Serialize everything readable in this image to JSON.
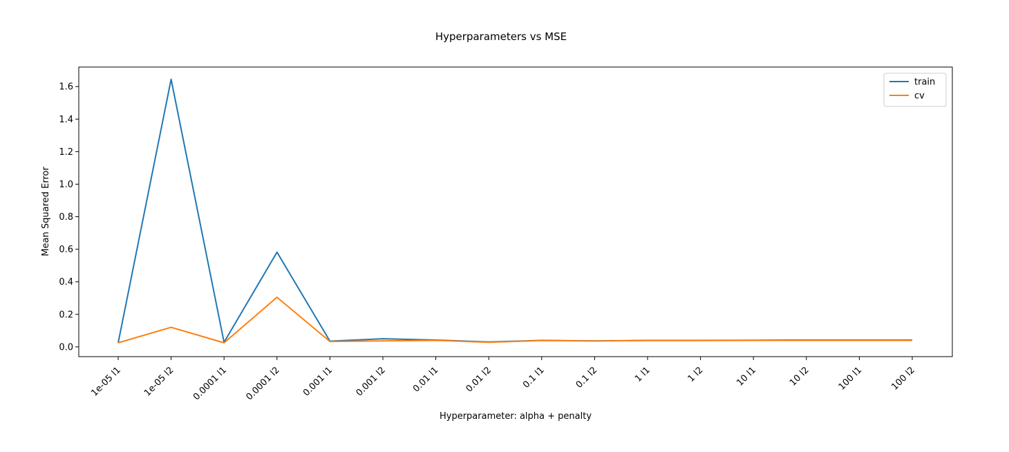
{
  "chart_data": {
    "type": "line",
    "title": "Hyperparameters vs MSE",
    "xlabel": "Hyperparameter: alpha + penalty",
    "ylabel": "Mean Squared Error",
    "categories": [
      "1e-05 l1",
      "1e-05 l2",
      "0.0001 l1",
      "0.0001 l2",
      "0.001 l1",
      "0.001 l2",
      "0.01 l1",
      "0.01 l2",
      "0.1 l1",
      "0.1 l2",
      "1 l1",
      "1 l2",
      "10 l1",
      "10 l2",
      "100 l1",
      "100 l2"
    ],
    "ylim": [
      -0.06,
      1.72
    ],
    "yticks": [
      0.0,
      0.2,
      0.4,
      0.6,
      0.8,
      1.0,
      1.2,
      1.4,
      1.6
    ],
    "grid": false,
    "legend_position": "top-right",
    "series": [
      {
        "name": "train",
        "color": "#1f77b4",
        "values": [
          0.025,
          1.645,
          0.028,
          0.582,
          0.035,
          0.05,
          0.042,
          0.03,
          0.04,
          0.037,
          0.04,
          0.04,
          0.041,
          0.042,
          0.042,
          0.042
        ]
      },
      {
        "name": "cv",
        "color": "#ff7f0e",
        "values": [
          0.025,
          0.12,
          0.025,
          0.305,
          0.033,
          0.037,
          0.04,
          0.028,
          0.039,
          0.036,
          0.039,
          0.039,
          0.04,
          0.04,
          0.04,
          0.04
        ]
      }
    ]
  }
}
